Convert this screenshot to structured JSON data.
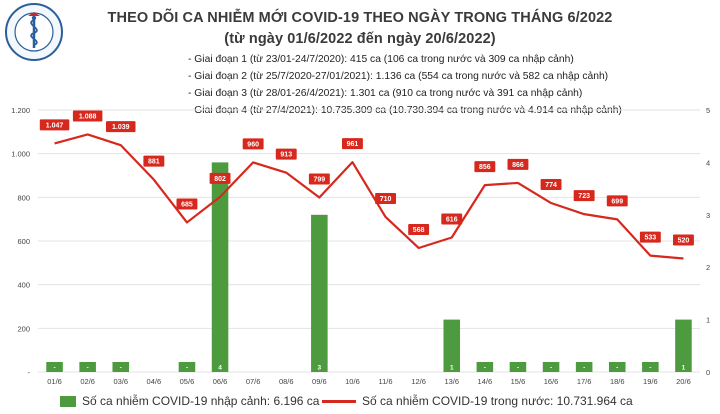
{
  "header": {
    "org": "BỘ Y TẾ",
    "org_ring": "MINISTRY OF HEALTH",
    "title": "THEO DÕI CA NHIỄM MỚI COVID-19 THEO NGÀY TRONG THÁNG 6/2022",
    "subtitle": "(từ ngày 01/6/2022 đến ngày 20/6/2022)",
    "phases": [
      "- Giai đoạn 1 (từ 23/01-24/7/2020): 415 ca (106 ca trong nước và 309 ca nhập cảnh)",
      "- Giai đoạn 2 (từ 25/7/2020-27/01/2021): 1.136 ca (554 ca trong nước và 582 ca nhập cảnh)",
      "- Giai đoạn 3 (từ 28/01-26/4/2021): 1.301 ca (910 ca trong nước và 391 ca nhập cảnh)",
      "- Giai đoạn 4 (từ 27/4/2021): 10.735.309 ca (10.730.394 ca trong nước và 4.914 ca nhập cảnh)"
    ]
  },
  "colors": {
    "bar": "#4e9a3f",
    "line": "#d7281e",
    "label_box": "#d7281e",
    "grid": "#e3e3e3"
  },
  "chart_data": {
    "type": "bar+line",
    "categories": [
      "01/6",
      "02/6",
      "03/6",
      "04/6",
      "05/6",
      "06/6",
      "07/6",
      "08/6",
      "09/6",
      "10/6",
      "11/6",
      "12/6",
      "13/6",
      "14/6",
      "15/6",
      "16/6",
      "17/6",
      "18/6",
      "19/6",
      "20/6"
    ],
    "left_axis": {
      "ylim": [
        0,
        1200
      ],
      "ticks": [
        "-",
        "200",
        "400",
        "600",
        "800",
        "1.000",
        "1.200"
      ]
    },
    "right_axis": {
      "ylim": [
        0,
        5
      ],
      "ticks": [
        "0",
        "1",
        "2",
        "3",
        "4",
        "5"
      ]
    },
    "series": [
      {
        "name": "Số ca nhiễm COVID-19 nhập cảnh: 6.196 ca",
        "kind": "bar",
        "axis": "right",
        "values": [
          0,
          0,
          0,
          null,
          0,
          4,
          null,
          null,
          3,
          null,
          null,
          null,
          1,
          0,
          0,
          0,
          0,
          0,
          0,
          1
        ],
        "labels": [
          "-",
          "-",
          "-",
          "",
          "-",
          "4",
          "",
          "",
          "3",
          "",
          "",
          "",
          "1",
          "-",
          "-",
          "-",
          "-",
          "-",
          "-",
          "1"
        ]
      },
      {
        "name": "Số ca nhiễm COVID-19 trong nước: 10.731.964 ca",
        "kind": "line",
        "axis": "left",
        "values": [
          1047,
          1088,
          1039,
          881,
          685,
          802,
          960,
          913,
          799,
          961,
          710,
          568,
          616,
          856,
          866,
          774,
          723,
          699,
          533,
          520
        ],
        "labels": [
          "1.047",
          "1.088",
          "1.039",
          "881",
          "685",
          "802",
          "960",
          "913",
          "799",
          "961",
          "710",
          "568",
          "616",
          "856",
          "866",
          "774",
          "723",
          "699",
          "533",
          "520"
        ]
      }
    ]
  }
}
